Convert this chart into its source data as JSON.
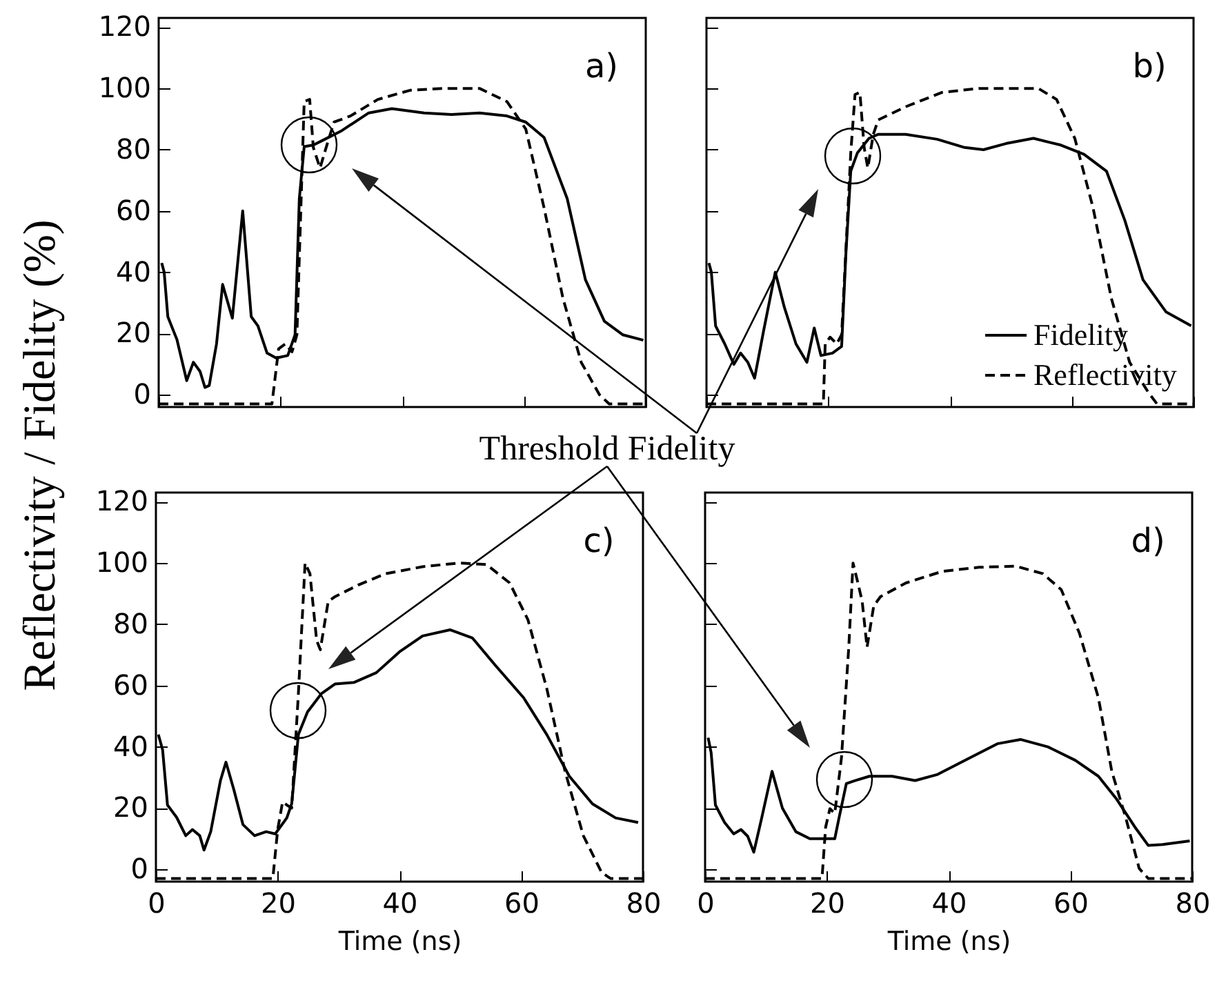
{
  "chart_data": [
    {
      "type": "line",
      "ylabel": "Reflectivity / Fidelity (%)",
      "annotations": [
        "a)",
        "Threshold Fidelity"
      ],
      "xlim": [
        0,
        80
      ],
      "xticks": [
        0,
        20,
        40,
        60,
        80
      ],
      "ylim": [
        -4,
        123
      ],
      "yticks": [
        0,
        20,
        40,
        60,
        80,
        100,
        120
      ],
      "tick_labels": "y",
      "series": [
        {
          "color": "#000000",
          "line_style": "solid",
          "x": [
            0.5,
            0.9,
            1.5,
            3.0,
            4.6,
            5.7,
            6.8,
            7.6,
            8.3,
            9.5,
            10.5,
            12.1,
            13.8,
            15.2,
            16.3,
            17.8,
            19.3,
            21.2,
            22.4,
            23.1,
            23.9,
            25.4,
            26.9,
            29.9,
            34.5,
            38.3,
            43.6,
            48.1,
            52.7,
            57.2,
            60.3,
            63.3,
            67.1,
            70.1,
            73.2,
            76.2,
            79.6
          ],
          "values": [
            43,
            40,
            25.5,
            18,
            4.6,
            10.6,
            7.6,
            2.4,
            3,
            16.6,
            36,
            25,
            60,
            25.5,
            22.5,
            13.6,
            12,
            12.8,
            19.6,
            64,
            81,
            81.5,
            83,
            86,
            92,
            93.4,
            92,
            91.5,
            92,
            91,
            89,
            84,
            64,
            37.5,
            24,
            19.6,
            17.8
          ]
        },
        {
          "color": "#000000",
          "line_style": "dashed",
          "x": [
            0,
            18.6,
            19.7,
            20.8,
            21.9,
            22.7,
            23.9,
            24.8,
            25.4,
            26.5,
            27.7,
            28.8,
            31.5,
            36,
            41.3,
            46.6,
            52.7,
            57.2,
            60.3,
            63.3,
            66.4,
            69.4,
            72.4,
            74,
            80
          ],
          "values": [
            -3,
            -3,
            15,
            16.6,
            14,
            19.6,
            95.7,
            96.4,
            80.7,
            74,
            82,
            89,
            91,
            96.4,
            99.4,
            100,
            100,
            95.7,
            86.7,
            61,
            31.5,
            10.6,
            0,
            -3,
            -3
          ]
        }
      ]
    },
    {
      "type": "line",
      "annotations": [
        "b)"
      ],
      "legend": "bottom right",
      "xlim": [
        0,
        80
      ],
      "xticks": [
        0,
        20,
        40,
        60,
        80
      ],
      "ylim": [
        -4,
        123
      ],
      "yticks": [
        0,
        20,
        40,
        60,
        80,
        100,
        120
      ],
      "tick_labels": false,
      "series": [
        {
          "name": "Fidelity",
          "color": "#000000",
          "line_style": "solid",
          "x": [
            0.4,
            0.8,
            1.5,
            3,
            4.5,
            5.6,
            6.8,
            7.9,
            9.4,
            11.3,
            12.8,
            14.7,
            16.5,
            17.7,
            18.8,
            20.7,
            22.2,
            22.9,
            23.7,
            24.8,
            26.7,
            28.2,
            32.7,
            37.9,
            42.4,
            45.5,
            49.2,
            53.7,
            58.2,
            62,
            65.7,
            68.7,
            71.7,
            75.5,
            79.6
          ],
          "values": [
            43,
            40,
            22.5,
            16.6,
            9.9,
            13.6,
            10.6,
            5.4,
            21,
            40,
            28.5,
            16.6,
            10.6,
            21.8,
            12.8,
            13.6,
            15.8,
            46,
            73,
            79,
            83.7,
            85,
            85,
            83.4,
            80.7,
            80,
            82,
            83.7,
            81.5,
            78.5,
            73,
            57,
            37.5,
            27,
            22.5
          ]
        },
        {
          "name": "Reflectivity",
          "color": "#000000",
          "line_style": "dashed",
          "x": [
            0,
            19.2,
            19.5,
            20.3,
            21.4,
            22.2,
            23.7,
            24.4,
            25.2,
            25.9,
            26.5,
            27.4,
            28.2,
            32.7,
            38.7,
            44.7,
            50.7,
            54.5,
            57.5,
            60.5,
            63.5,
            66.5,
            69.5,
            72.5,
            74,
            80
          ],
          "values": [
            -3,
            -3,
            16.6,
            18.8,
            16.6,
            19.6,
            79,
            98,
            98.7,
            80.7,
            74,
            85,
            89.7,
            94,
            98.7,
            100,
            100,
            100,
            96.4,
            83.7,
            61,
            31.5,
            10.6,
            1,
            -3,
            -3
          ]
        }
      ]
    },
    {
      "type": "line",
      "annotations": [
        "c)"
      ],
      "xlabel": "Time (ns)",
      "xlim": [
        0,
        80
      ],
      "xticks": [
        0,
        20,
        40,
        60,
        80
      ],
      "ylim": [
        -4,
        123
      ],
      "yticks": [
        0,
        20,
        40,
        60,
        80,
        100,
        120
      ],
      "series": [
        {
          "color": "#000000",
          "line_style": "solid",
          "x": [
            0.4,
            1.1,
            1.9,
            3.4,
            4.9,
            6,
            7.2,
            7.9,
            9,
            10.6,
            11.5,
            12.8,
            14.3,
            16.2,
            18.1,
            19.6,
            21.5,
            22.3,
            23.4,
            24.9,
            27.2,
            29.4,
            32.5,
            36.2,
            40,
            43.8,
            48.3,
            52,
            55.8,
            60.4,
            64.2,
            67.9,
            71.7,
            75.5,
            79.2
          ],
          "values": [
            44,
            39,
            21,
            17,
            11,
            13,
            11,
            6.3,
            12.3,
            29,
            35,
            26,
            14.6,
            11,
            12.3,
            11.6,
            16.8,
            21.4,
            44,
            51.4,
            57.4,
            60.5,
            61,
            64.2,
            71,
            76.2,
            78.2,
            75.5,
            66.5,
            56,
            44,
            30.4,
            21.4,
            16.8,
            15.3
          ]
        },
        {
          "color": "#000000",
          "line_style": "dashed",
          "x": [
            0,
            19.2,
            20,
            20.8,
            21.5,
            22.3,
            23.4,
            24.5,
            25.3,
            26.4,
            27,
            28.3,
            29.4,
            33.2,
            37.7,
            43.8,
            49.8,
            54.3,
            58.1,
            61.1,
            64.2,
            67.2,
            70.2,
            73.2,
            74.7,
            80
          ],
          "values": [
            -3,
            -3,
            13,
            22,
            21,
            20,
            57.4,
            100,
            96.5,
            74.7,
            71.7,
            87.5,
            89,
            92.8,
            96.5,
            98.8,
            100,
            99.5,
            93.5,
            81.5,
            59,
            32,
            11,
            -1,
            -3,
            -3
          ]
        }
      ]
    },
    {
      "type": "line",
      "annotations": [
        "d)"
      ],
      "xlabel": "Time (ns)",
      "xlim": [
        0,
        80
      ],
      "xticks": [
        0,
        20,
        40,
        60,
        80
      ],
      "ylim": [
        -4,
        123
      ],
      "yticks": [
        0,
        20,
        40,
        60,
        80,
        100,
        120
      ],
      "tick_labels": "x",
      "series": [
        {
          "color": "#000000",
          "line_style": "solid",
          "x": [
            0.5,
            1,
            1.7,
            3.2,
            4.7,
            5.9,
            7,
            8,
            9.3,
            11,
            12.7,
            14.9,
            17.2,
            19.4,
            21.3,
            22,
            23.2,
            24.7,
            27,
            30.7,
            34.5,
            38.2,
            43.5,
            48,
            51.8,
            56.3,
            60.8,
            64.6,
            67.6,
            70.6,
            72.8,
            75.1,
            79.6
          ],
          "values": [
            43,
            38,
            21,
            15.3,
            11.6,
            13,
            10.8,
            5.6,
            16.8,
            32,
            20,
            12.3,
            10,
            10,
            10,
            16.8,
            28,
            29,
            30.4,
            30.4,
            29,
            31,
            36.4,
            41,
            42.4,
            40,
            35.6,
            30.4,
            22.9,
            13.8,
            7.8,
            8.1,
            9.3
          ]
        },
        {
          "color": "#000000",
          "line_style": "dashed",
          "x": [
            0,
            19.2,
            19.8,
            20.5,
            21.3,
            22.4,
            23.6,
            24.3,
            25.1,
            25.8,
            26.6,
            27.7,
            28.8,
            33,
            39,
            45,
            51,
            55.5,
            58.5,
            61.5,
            64.6,
            66.8,
            69.1,
            71.3,
            72.8,
            80
          ],
          "values": [
            -3,
            -3,
            13.8,
            19.8,
            18.3,
            36.4,
            72.5,
            100,
            93.5,
            87.5,
            72.5,
            86,
            89,
            93.5,
            97.3,
            98.6,
            99,
            96.5,
            91.3,
            77,
            56,
            32,
            16.8,
            0.3,
            -3,
            -3
          ]
        }
      ]
    }
  ]
}
